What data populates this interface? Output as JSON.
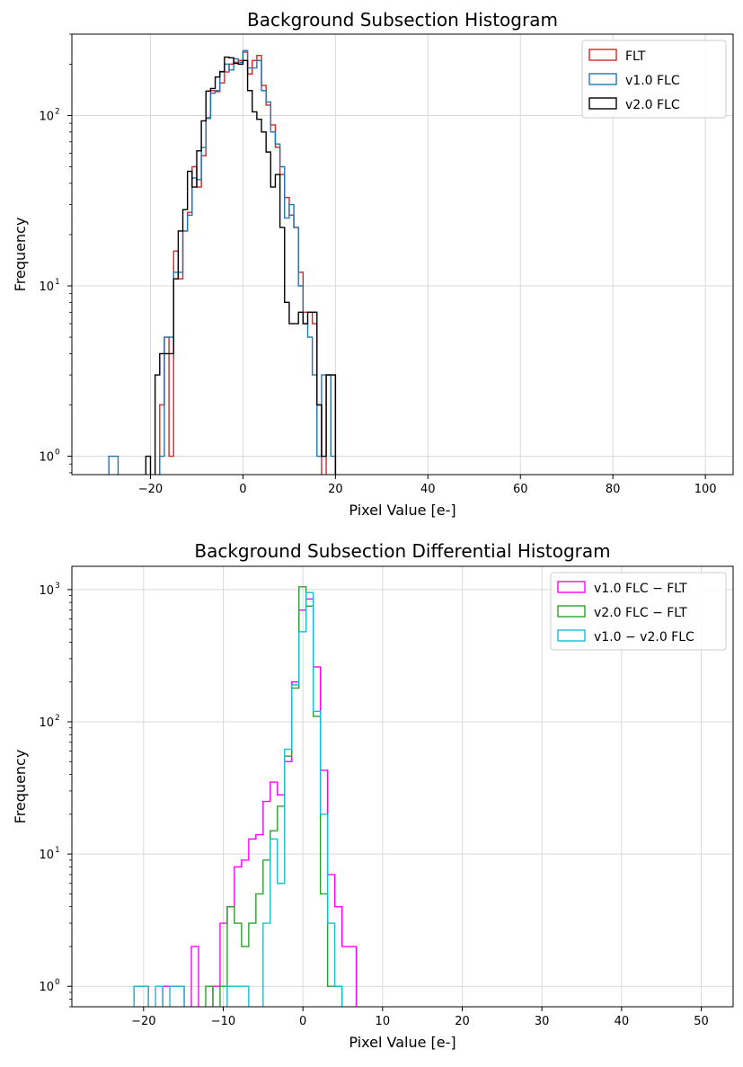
{
  "chart_data": [
    {
      "type": "histogram",
      "title": "Background Subsection Histogram",
      "xlabel": "Pixel Value [e-]",
      "ylabel": "Frequency",
      "yscale": "log",
      "xlim": [
        -37,
        106
      ],
      "ylim": [
        0.78,
        300
      ],
      "grid": true,
      "legend_position": "top-right",
      "x_ticks": [
        -20,
        0,
        20,
        40,
        60,
        80,
        100
      ],
      "x_tick_labels": [
        "−20",
        "0",
        "20",
        "40",
        "60",
        "80",
        "100"
      ],
      "y_ticks": [
        1,
        10,
        100
      ],
      "y_tick_labels": [
        {
          "base": "10",
          "exp": "0"
        },
        {
          "base": "10",
          "exp": "1"
        },
        {
          "base": "10",
          "exp": "2"
        }
      ],
      "series": [
        {
          "name": "FLT",
          "color": "#d62728",
          "x": [
            -20,
            -19,
            -18,
            -17,
            -16,
            -15,
            -14,
            -13,
            -12,
            -11,
            -10,
            -9,
            -8,
            -7,
            -6,
            -5,
            -4,
            -3,
            -2,
            -1,
            0,
            1,
            2,
            3,
            4,
            5,
            6,
            7,
            8,
            9,
            10,
            11,
            12,
            13,
            14,
            15,
            16,
            17,
            18,
            19,
            20,
            21,
            22,
            23,
            24
          ],
          "values": [
            0,
            0,
            2,
            5,
            1,
            16,
            11,
            21,
            27,
            50,
            38,
            58,
            97,
            140,
            138,
            155,
            180,
            200,
            205,
            210,
            235,
            175,
            210,
            225,
            150,
            115,
            88,
            65,
            45,
            33,
            26,
            22,
            12,
            7,
            7,
            6,
            2,
            0,
            3,
            3,
            0,
            0,
            0,
            0,
            0
          ]
        },
        {
          "name": "v1.0 FLC",
          "color": "#1f77b4",
          "x": [
            -29,
            -28,
            -27,
            -26,
            -25,
            -24,
            -23,
            -22,
            -21,
            -20,
            -19,
            -18,
            -17,
            -16,
            -15,
            -14,
            -13,
            -12,
            -11,
            -10,
            -9,
            -8,
            -7,
            -6,
            -5,
            -4,
            -3,
            -2,
            -1,
            0,
            1,
            2,
            3,
            4,
            5,
            6,
            7,
            8,
            9,
            10,
            11,
            12,
            13,
            14,
            15,
            16,
            17,
            18,
            19,
            20,
            21,
            22,
            23,
            24,
            25
          ],
          "values": [
            1,
            1,
            0,
            0,
            0,
            0,
            0,
            0,
            0,
            0,
            0,
            1,
            5,
            5,
            12,
            12,
            21,
            26,
            43,
            42,
            65,
            96,
            135,
            140,
            180,
            200,
            185,
            215,
            205,
            240,
            190,
            190,
            210,
            140,
            120,
            80,
            68,
            50,
            25,
            30,
            22,
            10,
            6,
            5,
            3,
            1,
            3,
            3,
            1,
            0,
            0,
            0,
            0,
            0,
            0
          ]
        },
        {
          "name": "v2.0 FLC",
          "color": "#000000",
          "x": [
            -21,
            -20,
            -19,
            -18,
            -17,
            -16,
            -15,
            -14,
            -13,
            -12,
            -11,
            -10,
            -9,
            -8,
            -7,
            -6,
            -5,
            -4,
            -3,
            -2,
            -1,
            0,
            1,
            2,
            3,
            4,
            5,
            6,
            7,
            8,
            9,
            10,
            11,
            12,
            13,
            14,
            15,
            16,
            17,
            18,
            19,
            20,
            21,
            22,
            23
          ],
          "values": [
            1,
            0,
            3,
            4,
            4,
            4,
            11,
            21,
            28,
            47,
            38,
            62,
            93,
            139,
            144,
            168,
            181,
            220,
            218,
            202,
            200,
            210,
            140,
            105,
            95,
            80,
            61,
            38,
            45,
            22,
            8,
            6,
            6,
            7,
            6,
            7,
            7,
            2,
            1,
            3,
            3,
            0,
            0,
            0,
            0
          ]
        }
      ]
    },
    {
      "type": "histogram",
      "title": "Background Subsection Differential Histogram",
      "xlabel": "Pixel Value [e-]",
      "ylabel": "Frequency",
      "yscale": "log",
      "xlim": [
        -29,
        54
      ],
      "ylim": [
        0.7,
        1500
      ],
      "grid": true,
      "legend_position": "top-right",
      "x_ticks": [
        -20,
        -10,
        0,
        10,
        20,
        30,
        40,
        50
      ],
      "x_tick_labels": [
        "−20",
        "−10",
        "0",
        "10",
        "20",
        "30",
        "40",
        "50"
      ],
      "y_ticks": [
        1,
        10,
        100,
        1000
      ],
      "y_tick_labels": [
        {
          "base": "10",
          "exp": "0"
        },
        {
          "base": "10",
          "exp": "1"
        },
        {
          "base": "10",
          "exp": "2"
        },
        {
          "base": "10",
          "exp": "3"
        }
      ],
      "series": [
        {
          "name": "v1.0 FLC − FLT",
          "color": "#ff00ff",
          "x": [
            -21.2,
            -20.3,
            -19.4,
            -18.5,
            -17.6,
            -16.7,
            -15.8,
            -14.9,
            -14.0,
            -13.1,
            -12.2,
            -11.3,
            -10.4,
            -9.5,
            -8.6,
            -7.7,
            -6.8,
            -5.9,
            -5.0,
            -4.1,
            -3.2,
            -2.3,
            -1.4,
            -0.5,
            0.4,
            1.3,
            2.2,
            3.1,
            4.0,
            4.9,
            5.8
          ],
          "values": [
            1,
            1,
            0,
            0,
            1,
            1,
            1,
            0,
            2,
            0,
            0,
            1,
            3,
            4,
            8,
            9,
            13,
            14,
            25,
            35,
            28,
            50,
            200,
            700,
            850,
            260,
            43,
            7,
            4,
            2,
            2
          ]
        },
        {
          "name": "v2.0 FLC − FLT",
          "color": "#2ca02c",
          "x": [
            -12.2,
            -11.3,
            -10.4,
            -9.5,
            -8.6,
            -7.7,
            -6.8,
            -5.9,
            -5.0,
            -4.1,
            -3.2,
            -2.3,
            -1.4,
            -0.5,
            0.4,
            1.3,
            2.2,
            3.1,
            4.0
          ],
          "values": [
            1,
            0,
            1,
            4,
            3,
            2,
            3,
            5,
            9,
            15,
            23,
            55,
            180,
            1050,
            750,
            110,
            5,
            1,
            1
          ]
        },
        {
          "name": "v1.0 − v2.0 FLC",
          "color": "#17becf",
          "x": [
            -21.2,
            -20.3,
            -19.4,
            -18.5,
            -17.6,
            -16.7,
            -15.8,
            -14.9,
            -14.0,
            -13.1,
            -12.2,
            -11.3,
            -10.4,
            -9.5,
            -8.6,
            -7.7,
            -6.8,
            -5.9,
            -5.0,
            -4.1,
            -3.2,
            -2.3,
            -1.4,
            -0.5,
            0.4,
            1.3,
            2.2,
            3.1,
            4.0
          ],
          "values": [
            1,
            1,
            0,
            1,
            0,
            1,
            1,
            0,
            0,
            0,
            0,
            0,
            0,
            1,
            1,
            1,
            0,
            0,
            3,
            13,
            6,
            62,
            190,
            480,
            950,
            120,
            20,
            3,
            1
          ]
        }
      ]
    }
  ]
}
